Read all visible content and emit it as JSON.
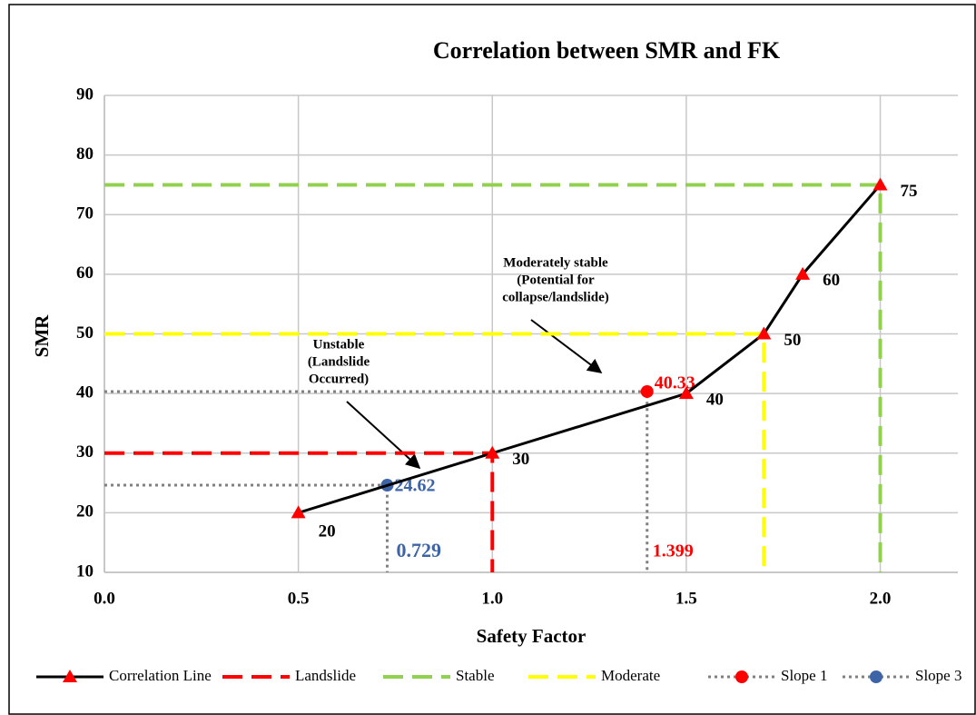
{
  "chart_data": {
    "type": "line",
    "title": "Correlation between SMR and FK",
    "x_label": "Safety Factor",
    "y_label": "SMR",
    "xlim": [
      0,
      2.2
    ],
    "ylim": [
      10,
      90
    ],
    "xticks": [
      {
        "value": 0,
        "label": "0.0"
      },
      0.5,
      {
        "value": 1,
        "label": "1.0"
      },
      1.5,
      {
        "value": 2,
        "label": "2.0"
      }
    ],
    "yticks": [
      10,
      20,
      30,
      40,
      50,
      60,
      70,
      80,
      90
    ],
    "grid": true,
    "legend": "bottom",
    "series": [
      {
        "name": "Correlation Line",
        "color": "#000000",
        "style": "solid",
        "marker": "triangle",
        "x": [
          0.5,
          1.0,
          1.5,
          1.7,
          1.8,
          2.0
        ],
        "values": [
          20,
          30,
          40,
          50,
          60,
          75
        ]
      },
      {
        "name": "Landslide",
        "color": "#ff0000",
        "style": "dashed",
        "x": [
          0,
          1.0,
          1.0
        ],
        "values": [
          30,
          30,
          10
        ]
      },
      {
        "name": "Stable",
        "color": "#92d050",
        "style": "dashed",
        "x": [
          0,
          2.0,
          2.0
        ],
        "values": [
          75,
          75,
          10
        ]
      },
      {
        "name": "Moderate",
        "color": "#ffff00",
        "style": "dashed",
        "x": [
          0,
          1.7,
          1.7
        ],
        "values": [
          50,
          50,
          10
        ]
      },
      {
        "name": "Slope 1",
        "color": "#808080",
        "marker_color": "#ff0000",
        "style": "dotted",
        "marker": "circle",
        "x": [
          0,
          1.399,
          1.399
        ],
        "values": [
          40.33,
          40.33,
          10
        ]
      },
      {
        "name": "Slope 3",
        "color": "#808080",
        "marker_color": "#3e64a8",
        "style": "dotted",
        "marker": "circle",
        "x": [
          0,
          0.729,
          0.729
        ],
        "values": [
          24.62,
          24.62,
          10
        ]
      }
    ],
    "annotations": [
      {
        "lines": [
          "Moderately stable",
          "(Potential for",
          "collapse/landslide)"
        ]
      },
      {
        "lines": [
          "Unstable",
          "(Landslide",
          "Occurred)"
        ]
      }
    ]
  }
}
